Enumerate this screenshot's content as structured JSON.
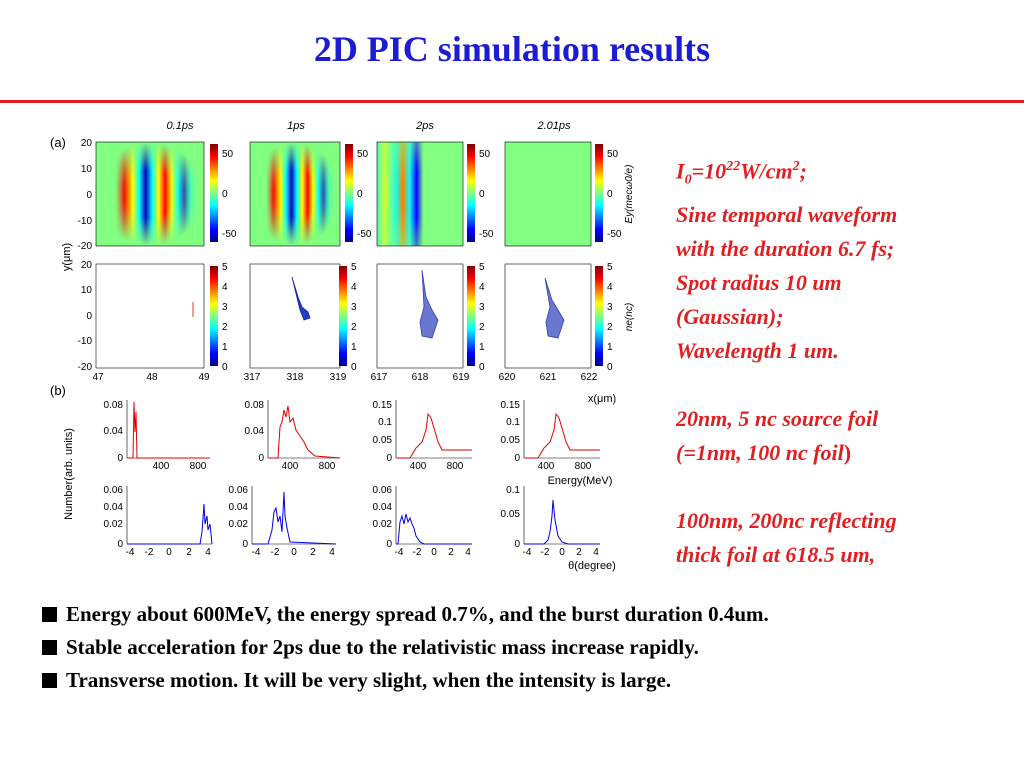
{
  "title": "2D PIC simulation results",
  "figure": {
    "panel_a_label": "(a)",
    "panel_b_label": "(b)",
    "times": [
      "0.1ps",
      "1ps",
      "2ps",
      "2.01ps"
    ],
    "ey_colorbar_ticks": [
      "50",
      "0",
      "-50"
    ],
    "ey_colorbar_label": "Ey(mecω0/e)",
    "ne_colorbar_ticks": [
      "5",
      "4",
      "3",
      "2",
      "1",
      "0"
    ],
    "ne_colorbar_label": "ne(nc)",
    "y_label": "y(μm)",
    "y_ticks": [
      "20",
      "10",
      "0",
      "-10",
      "-20"
    ],
    "x_label": "x(μm)",
    "x_ticks": [
      [
        "47",
        "48",
        "49"
      ],
      [
        "317",
        "318",
        "319"
      ],
      [
        "617",
        "618",
        "619"
      ],
      [
        "620",
        "621",
        "622"
      ]
    ],
    "energy_x_ticks": [
      "400",
      "800"
    ],
    "energy_label": "Energy(MeV)",
    "number_label": "Number(arb. units)",
    "energy_y_ticks": [
      [
        "0.08",
        "0.04",
        "0"
      ],
      [
        "0.08",
        "0.04",
        "0"
      ],
      [
        "0.15",
        "0.1",
        "0.05",
        "0"
      ],
      [
        "0.15",
        "0.1",
        "0.05",
        "0"
      ]
    ],
    "angle_y_ticks": [
      [
        "0.06",
        "0.04",
        "0.02",
        "0"
      ],
      [
        "0.06",
        "0.04",
        "0.02",
        "0"
      ],
      [
        "0.06",
        "0.04",
        "0.02",
        "0"
      ],
      [
        "0.1",
        "0.05",
        "0"
      ]
    ],
    "angle_x_ticks": [
      "-4",
      "-2",
      "0",
      "2",
      "4"
    ],
    "angle_label": "θ(degree)"
  },
  "notes": {
    "line1_prefix": "I",
    "line1_sub": "0",
    "line1_eq": "=10",
    "line1_sup1": "22",
    "line1_unit": "W/cm",
    "line1_sup2": "2",
    "line1_end": ";",
    "line2": "Sine temporal waveform",
    "line3": "with the duration 6.7 fs;",
    "line4": "Spot radius 10 um",
    "line5": "(Gaussian);",
    "line6": "Wavelength 1 um.",
    "line7": "20nm, 5 nc source foil",
    "line8": "(=1nm, 100 nc foil",
    "line8_end": ")",
    "line9": "100nm, 200nc reflecting",
    "line10": "thick foil at 618.5 um,"
  },
  "bullets": [
    "Energy about 600MeV, the energy spread 0.7%, and the burst duration 0.4um.",
    "Stable acceleration for 2ps due to the relativistic mass increase rapidly.",
    "Transverse motion. It will be very slight, when the intensity is large."
  ]
}
